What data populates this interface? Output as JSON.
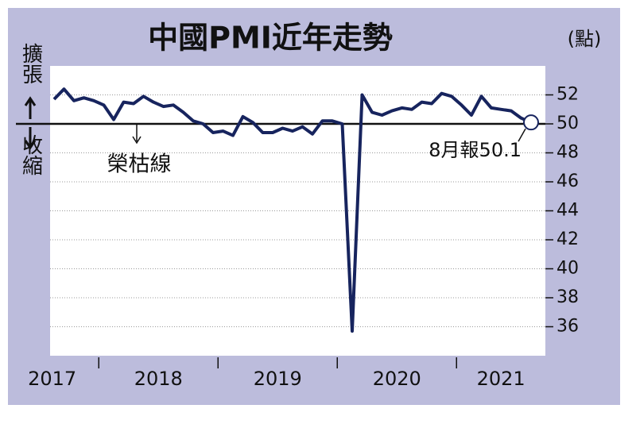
{
  "chart_data": {
    "type": "line",
    "title": "中國PMI近年走勢",
    "unit_label": "(點)",
    "expand_label": "擴張",
    "contract_label": "收縮",
    "threshold_label": "榮枯線",
    "last_label": "8月報50.1",
    "year_labels": [
      "2017",
      "2018",
      "2019",
      "2020",
      "2021"
    ],
    "series": [
      {
        "color": "#17245e",
        "values": [
          51.7,
          52.4,
          51.6,
          51.8,
          51.6,
          51.3,
          50.3,
          51.5,
          51.4,
          51.9,
          51.5,
          51.2,
          51.3,
          50.8,
          50.2,
          50.0,
          49.4,
          49.5,
          49.2,
          50.5,
          50.1,
          49.4,
          49.4,
          49.7,
          49.5,
          49.8,
          49.3,
          50.2,
          50.2,
          50.0,
          35.7,
          52.0,
          50.8,
          50.6,
          50.9,
          51.1,
          51.0,
          51.5,
          51.4,
          52.1,
          51.9,
          51.3,
          50.6,
          51.9,
          51.1,
          51.0,
          50.9,
          50.4,
          50.1
        ]
      }
    ],
    "threshold": 50,
    "ylim": [
      34,
      54
    ],
    "yticks": [
      36,
      38,
      40,
      42,
      44,
      46,
      48,
      50,
      52
    ],
    "grid": true
  }
}
